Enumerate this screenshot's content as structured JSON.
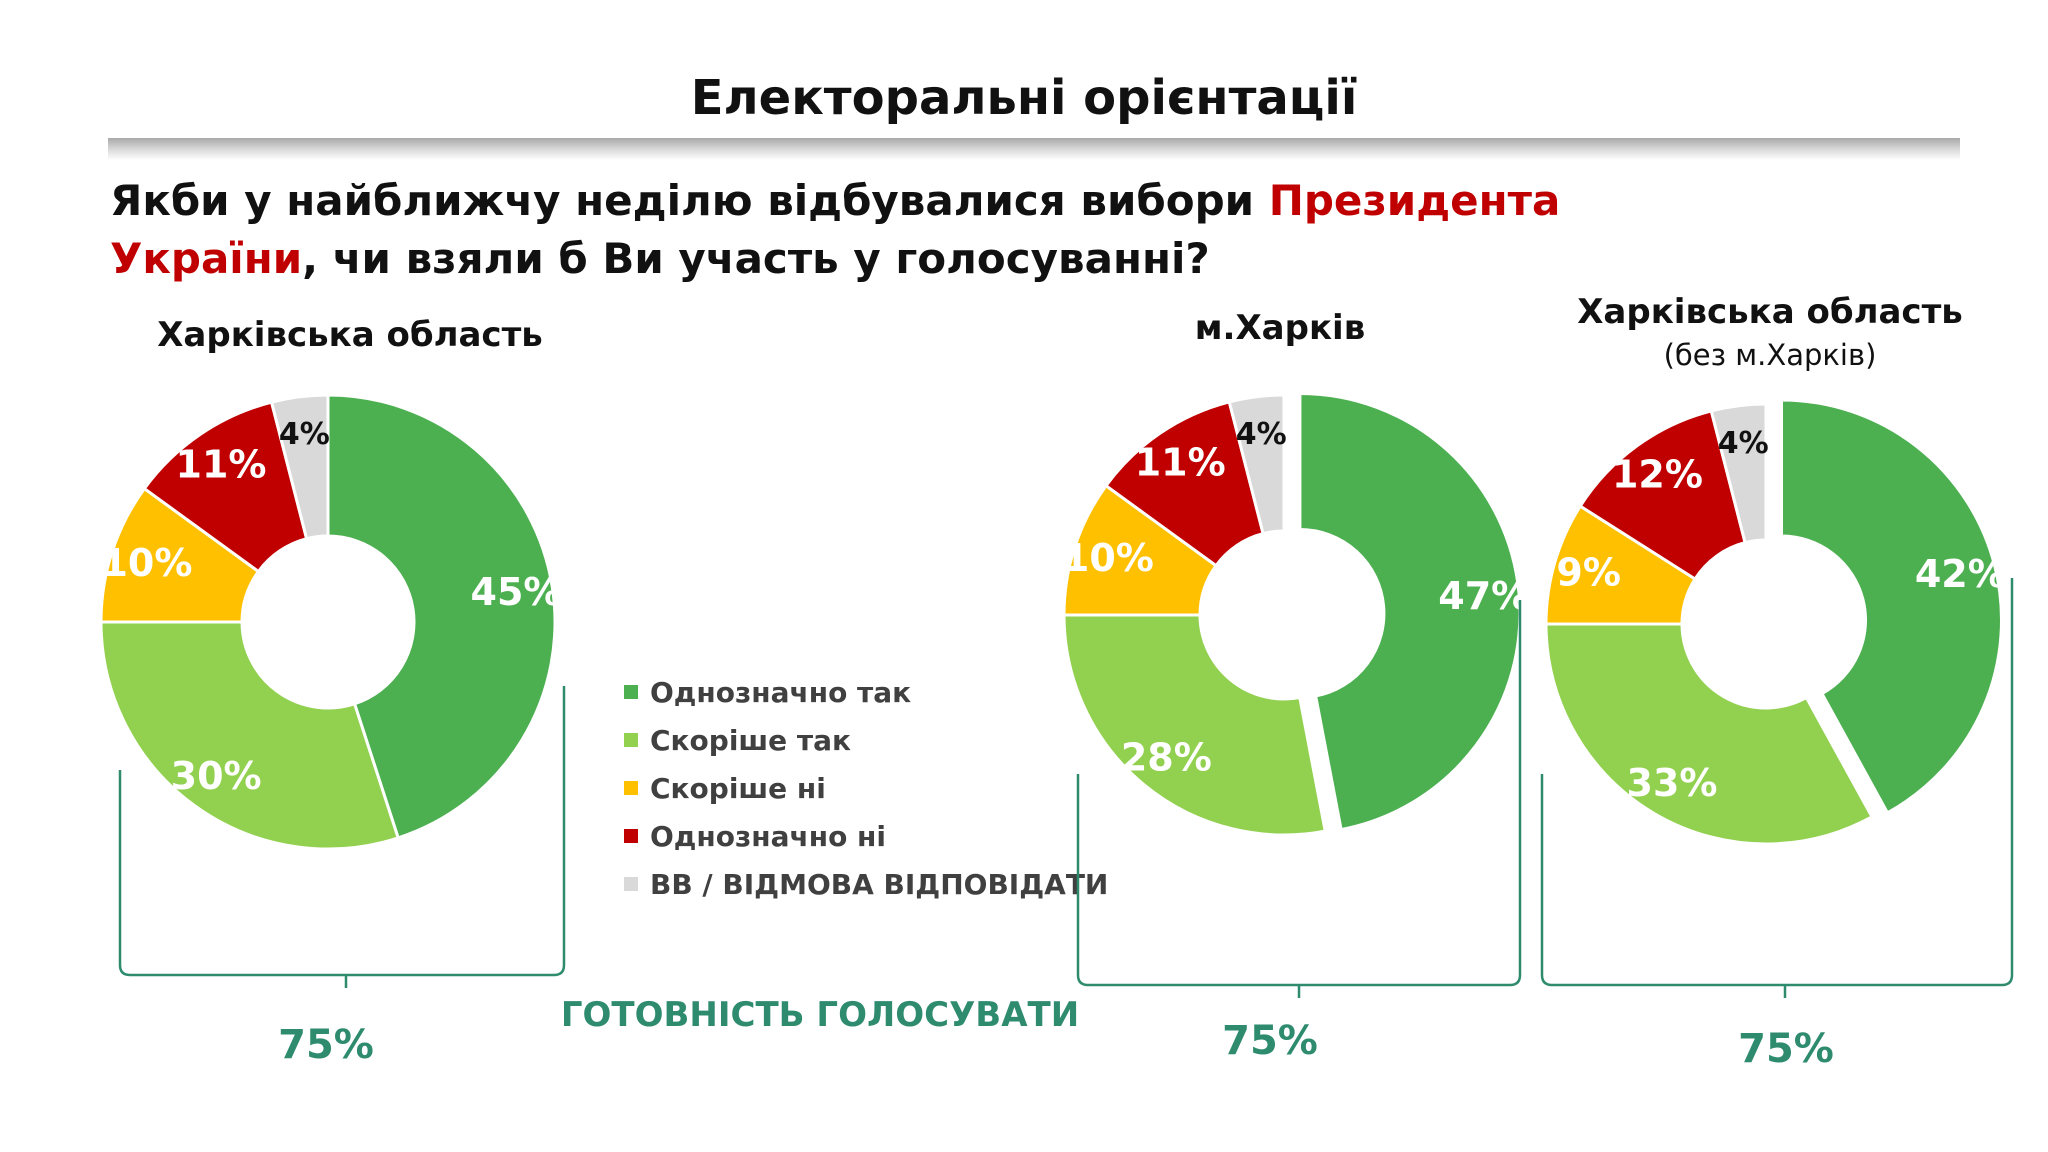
{
  "title": "Електоральні орієнтації",
  "question": {
    "part1": "Якби у найближчу неділю відбувалися вибори ",
    "highlight": "Президента України",
    "part2": ", чи взяли б Ви участь у голосуванні?",
    "highlight_color": "#c00000"
  },
  "colors": {
    "Однозначно так": "#4caf50",
    "Скоріше так": "#92d050",
    "Скоріше ні": "#ffc000",
    "Однозначно ні": "#c00000",
    "ВВ / ВІДМОВА ВІДПОВІДАТИ": "#d9d9d9",
    "accent": "#2e8b6e"
  },
  "legend": [
    "Однозначно так",
    "Скоріше так",
    "Скоріше ні",
    "Однозначно ні",
    "ВВ / ВІДМОВА ВІДПОВІДАТИ"
  ],
  "readiness_label": "ГОТОВНІСТЬ ГОЛОСУВАТИ",
  "chart_data": [
    {
      "type": "pie",
      "title": "Харківська область",
      "subtitle": "",
      "categories": [
        "Однозначно так",
        "Скоріше так",
        "Скоріше ні",
        "Однозначно ні",
        "ВВ / ВІДМОВА ВІДПОВІДАТИ"
      ],
      "values": [
        45,
        30,
        10,
        11,
        4
      ],
      "value_labels": [
        "45%",
        "30%",
        "10%",
        "11%",
        "4%"
      ],
      "total_label": "75%",
      "legend_position": "right"
    },
    {
      "type": "pie",
      "title": "м.Харків",
      "subtitle": "",
      "categories": [
        "Однозначно так",
        "Скоріше так",
        "Скоріше ні",
        "Однозначно ні",
        "ВВ / ВІДМОВА ВІДПОВІДАТИ"
      ],
      "values": [
        47,
        28,
        10,
        11,
        4
      ],
      "value_labels": [
        "47%",
        "28%",
        "10%",
        "11%",
        "4%"
      ],
      "total_label": "75%",
      "exploded": [
        "Однозначно так"
      ]
    },
    {
      "type": "pie",
      "title": "Харківська область",
      "subtitle": "(без м.Харків)",
      "categories": [
        "Однозначно так",
        "Скоріше так",
        "Скоріше ні",
        "Однозначно ні",
        "ВВ / ВІДМОВА ВІДПОВІДАТИ"
      ],
      "values": [
        42,
        33,
        9,
        12,
        4
      ],
      "value_labels": [
        "42%",
        "33%",
        "9%",
        "12%",
        "4%"
      ],
      "total_label": "75%",
      "exploded": [
        "Однозначно так"
      ]
    }
  ]
}
